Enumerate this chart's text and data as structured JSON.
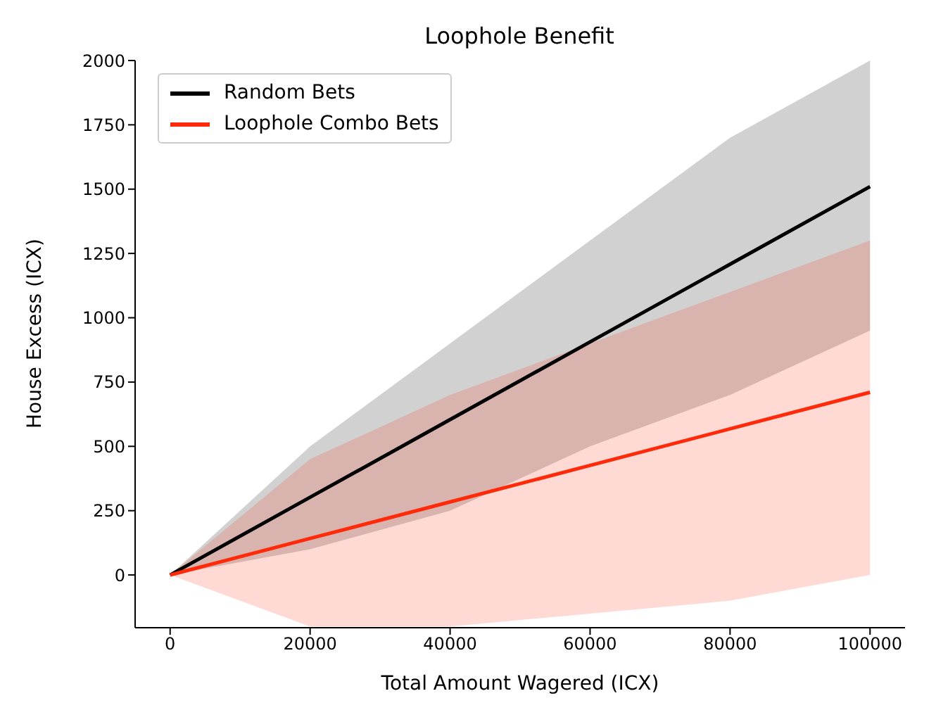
{
  "chart_data": {
    "type": "line",
    "title": "Loophole Benefit",
    "xlabel": "Total Amount Wagered (ICX)",
    "ylabel": "House Excess (ICX)",
    "x": [
      0,
      20000,
      40000,
      60000,
      80000,
      100000
    ],
    "series": [
      {
        "name": "Random Bets",
        "color": "#000000",
        "values": [
          0,
          302,
          604,
          906,
          1208,
          1510
        ],
        "lower": [
          0,
          100,
          250,
          500,
          700,
          950
        ],
        "upper": [
          0,
          500,
          900,
          1300,
          1700,
          2000
        ]
      },
      {
        "name": "Loophole Combo Bets",
        "color": "#ff2a0a",
        "values": [
          0,
          142,
          284,
          426,
          568,
          710
        ],
        "lower": [
          0,
          -200,
          -200,
          -150,
          -100,
          0
        ],
        "upper": [
          0,
          450,
          700,
          900,
          1100,
          1300
        ]
      }
    ],
    "xlim": [
      -5000,
      105000
    ],
    "xticks": [
      0,
      20000,
      40000,
      60000,
      80000,
      100000
    ],
    "ylim": [
      -205,
      2000
    ],
    "yticks": [
      0,
      250,
      500,
      750,
      1000,
      1250,
      1500,
      1750,
      2000
    ],
    "legend": "top left",
    "grid": false,
    "marker": "none",
    "line_style": "solid"
  }
}
